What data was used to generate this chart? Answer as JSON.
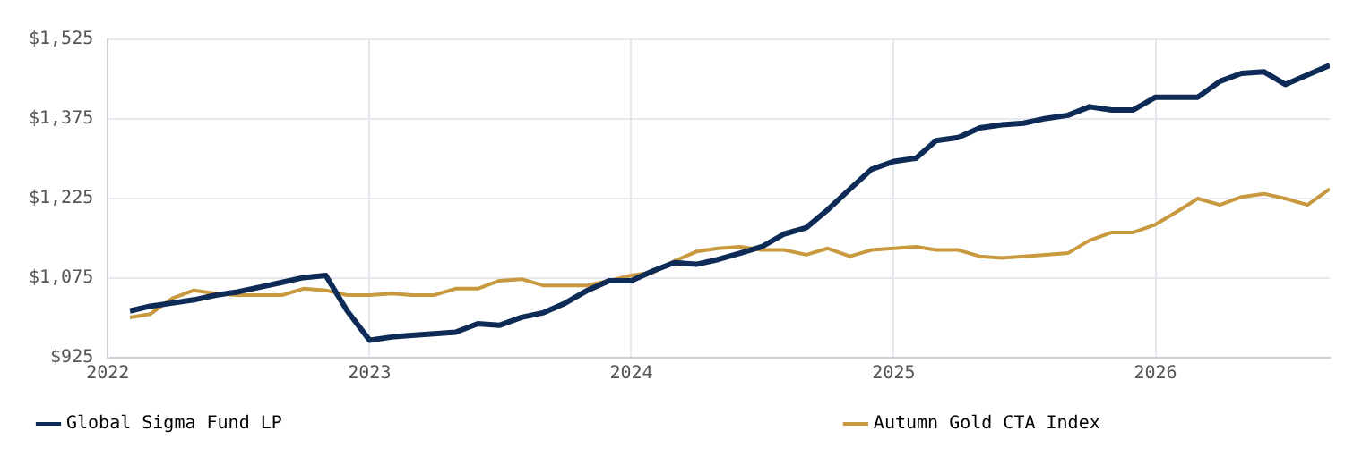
{
  "chart_data": {
    "type": "line",
    "x": [
      "2022-02",
      "2022-03",
      "2022-04",
      "2022-05",
      "2022-06",
      "2022-07",
      "2022-08",
      "2022-09",
      "2022-10",
      "2022-11",
      "2022-12",
      "2023-01",
      "2023-02",
      "2023-03",
      "2023-04",
      "2023-05",
      "2023-06",
      "2023-07",
      "2023-08",
      "2023-09",
      "2023-10",
      "2023-11",
      "2023-12",
      "2024-01",
      "2024-02",
      "2024-03",
      "2024-04",
      "2024-05",
      "2024-06",
      "2024-07",
      "2024-08",
      "2024-09",
      "2024-10",
      "2024-11",
      "2024-12",
      "2025-01",
      "2025-02",
      "2025-03",
      "2025-04",
      "2025-05",
      "2025-06",
      "2025-07",
      "2025-08",
      "2025-09",
      "2025-10",
      "2025-11",
      "2025-12",
      "2026-01",
      "2026-02",
      "2026-03",
      "2026-04",
      "2026-05",
      "2026-06",
      "2026-07",
      "2026-08",
      "2026-09"
    ],
    "series": [
      {
        "name": "Global Sigma Fund LP",
        "color": "#0d2b56",
        "values": [
          1013,
          1022,
          1028,
          1034,
          1043,
          1049,
          1058,
          1067,
          1076,
          1080,
          1013,
          958,
          964,
          967,
          970,
          973,
          989,
          986,
          1001,
          1010,
          1028,
          1052,
          1070,
          1070,
          1089,
          1104,
          1101,
          1110,
          1122,
          1134,
          1158,
          1170,
          1204,
          1243,
          1280,
          1295,
          1301,
          1334,
          1340,
          1358,
          1364,
          1367,
          1376,
          1382,
          1398,
          1392,
          1392,
          1416,
          1416,
          1416,
          1446,
          1461,
          1464,
          1440,
          1458,
          1476
        ]
      },
      {
        "name": "Autumn Gold CTA Index",
        "color": "#c9993f",
        "values": [
          1001,
          1007,
          1037,
          1052,
          1046,
          1043,
          1043,
          1043,
          1055,
          1052,
          1043,
          1043,
          1046,
          1043,
          1043,
          1055,
          1055,
          1070,
          1073,
          1061,
          1061,
          1061,
          1070,
          1080,
          1086,
          1107,
          1125,
          1131,
          1134,
          1128,
          1128,
          1119,
          1131,
          1116,
          1128,
          1131,
          1134,
          1128,
          1128,
          1116,
          1113,
          1116,
          1119,
          1122,
          1146,
          1161,
          1161,
          1176,
          1201,
          1225,
          1213,
          1228,
          1234,
          1225,
          1213,
          1243
        ]
      }
    ],
    "xlim": [
      "2022-01",
      "2026-09"
    ],
    "xticks": [
      {
        "value": "2022-01",
        "label": "2022"
      },
      {
        "value": "2023-01",
        "label": "2023"
      },
      {
        "value": "2024-01",
        "label": "2024"
      },
      {
        "value": "2025-01",
        "label": "2025"
      },
      {
        "value": "2026-01",
        "label": "2026"
      }
    ],
    "ylim": [
      925,
      1525
    ],
    "yticks": [
      {
        "value": 925,
        "label": "$925"
      },
      {
        "value": 1075,
        "label": "$1,075"
      },
      {
        "value": 1225,
        "label": "$1,225"
      },
      {
        "value": 1375,
        "label": "$1,375"
      },
      {
        "value": 1525,
        "label": "$1,525"
      }
    ],
    "grid": true,
    "legend": "bottom",
    "marker": "none",
    "line_style": "solid"
  }
}
